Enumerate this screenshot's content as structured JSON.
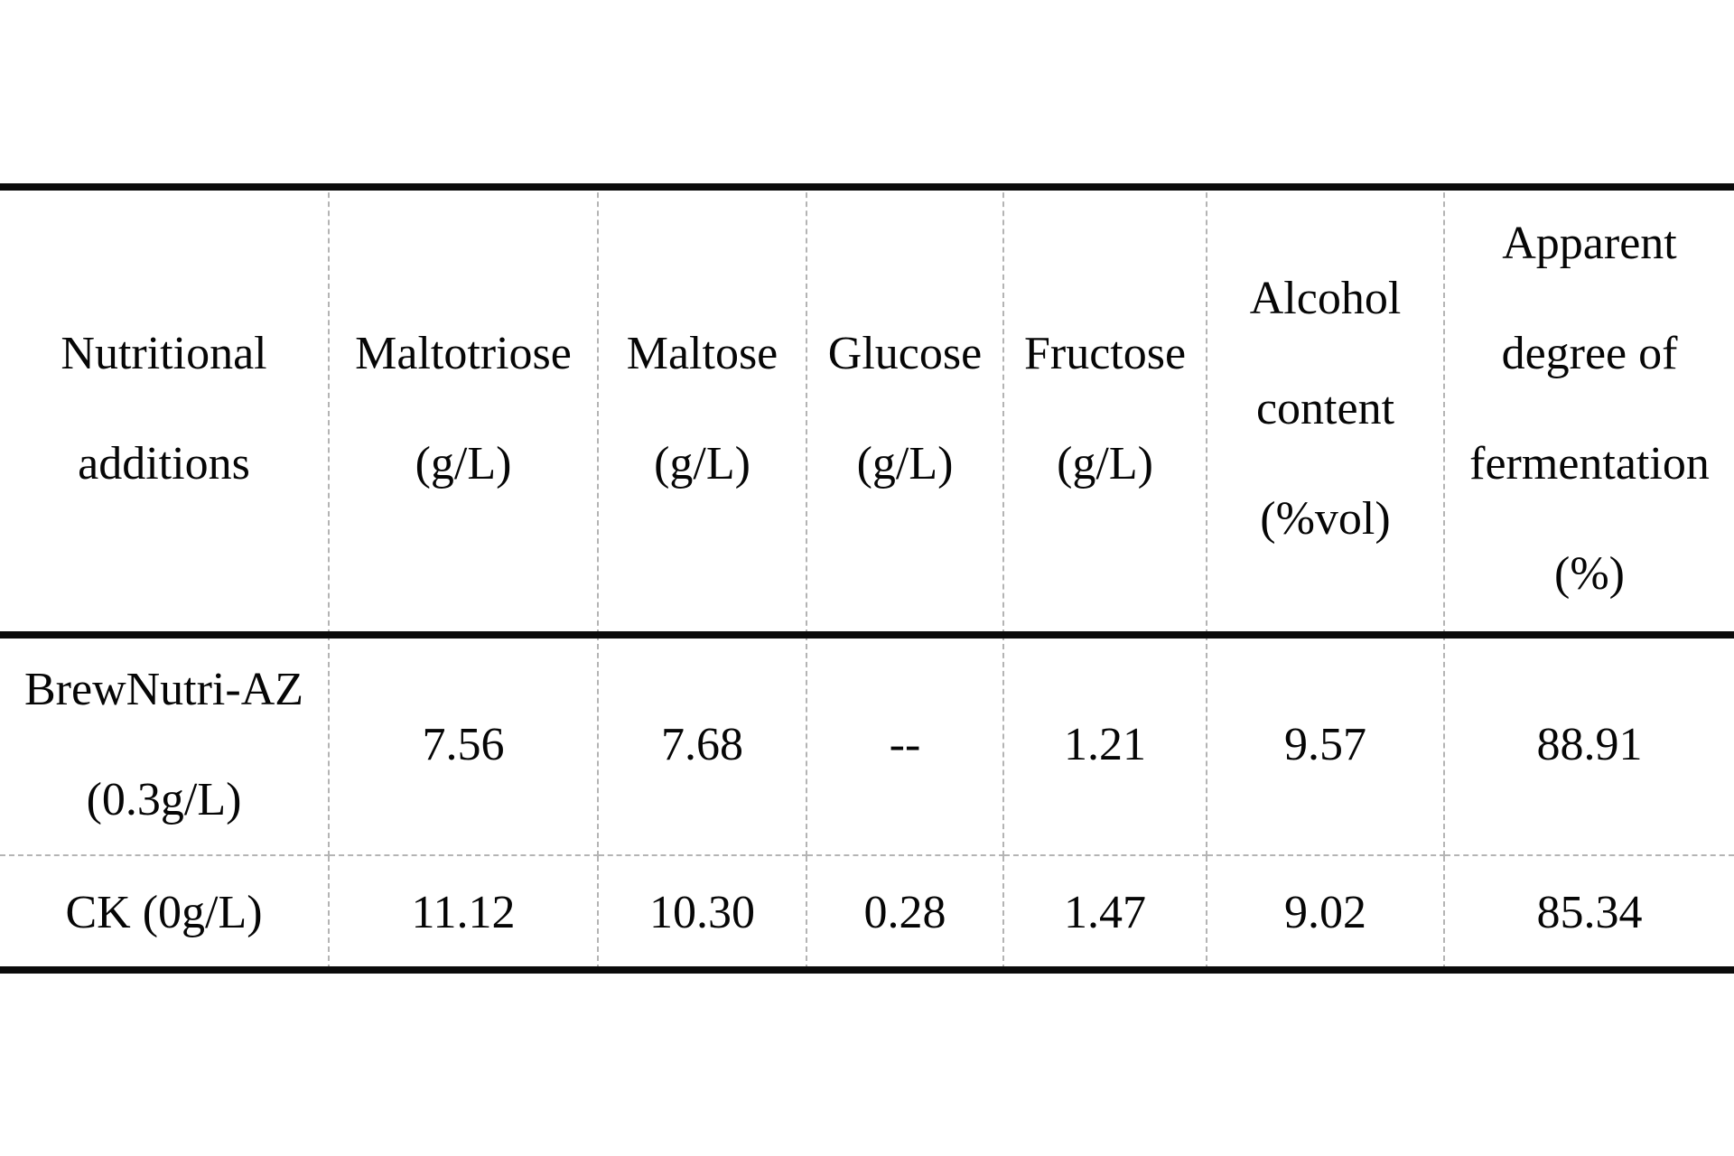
{
  "page": {
    "background": "#ffffff"
  },
  "table": {
    "border_color": "#0b0b0b",
    "grid_color": "#b4b4b4",
    "columns": [
      {
        "key": "nutritional-additions",
        "lines": [
          "Nutritional",
          "additions"
        ]
      },
      {
        "key": "maltotriose",
        "lines": [
          "Maltotriose",
          "(g/L)"
        ]
      },
      {
        "key": "maltose",
        "lines": [
          "Maltose",
          "(g/L)"
        ]
      },
      {
        "key": "glucose",
        "lines": [
          "Glucose",
          "(g/L)"
        ]
      },
      {
        "key": "fructose",
        "lines": [
          "Fructose",
          "(g/L)"
        ]
      },
      {
        "key": "alcohol-content",
        "lines": [
          "Alcohol",
          "content",
          "(%vol)"
        ]
      },
      {
        "key": "apparent-degree-of-fermentation",
        "lines": [
          "Apparent",
          "degree of",
          "fermentation",
          "(%)"
        ]
      }
    ],
    "rows": [
      {
        "key": "brewnutri-az",
        "label_lines": [
          "BrewNutri-AZ",
          "(0.3g/L)"
        ],
        "values": [
          "7.56",
          "7.68",
          "--",
          "1.21",
          "9.57",
          "88.91"
        ]
      },
      {
        "key": "ck",
        "label_lines": [
          "CK (0g/L)"
        ],
        "values": [
          "11.12",
          "10.30",
          "0.28",
          "1.47",
          "9.02",
          "85.34"
        ]
      }
    ]
  }
}
